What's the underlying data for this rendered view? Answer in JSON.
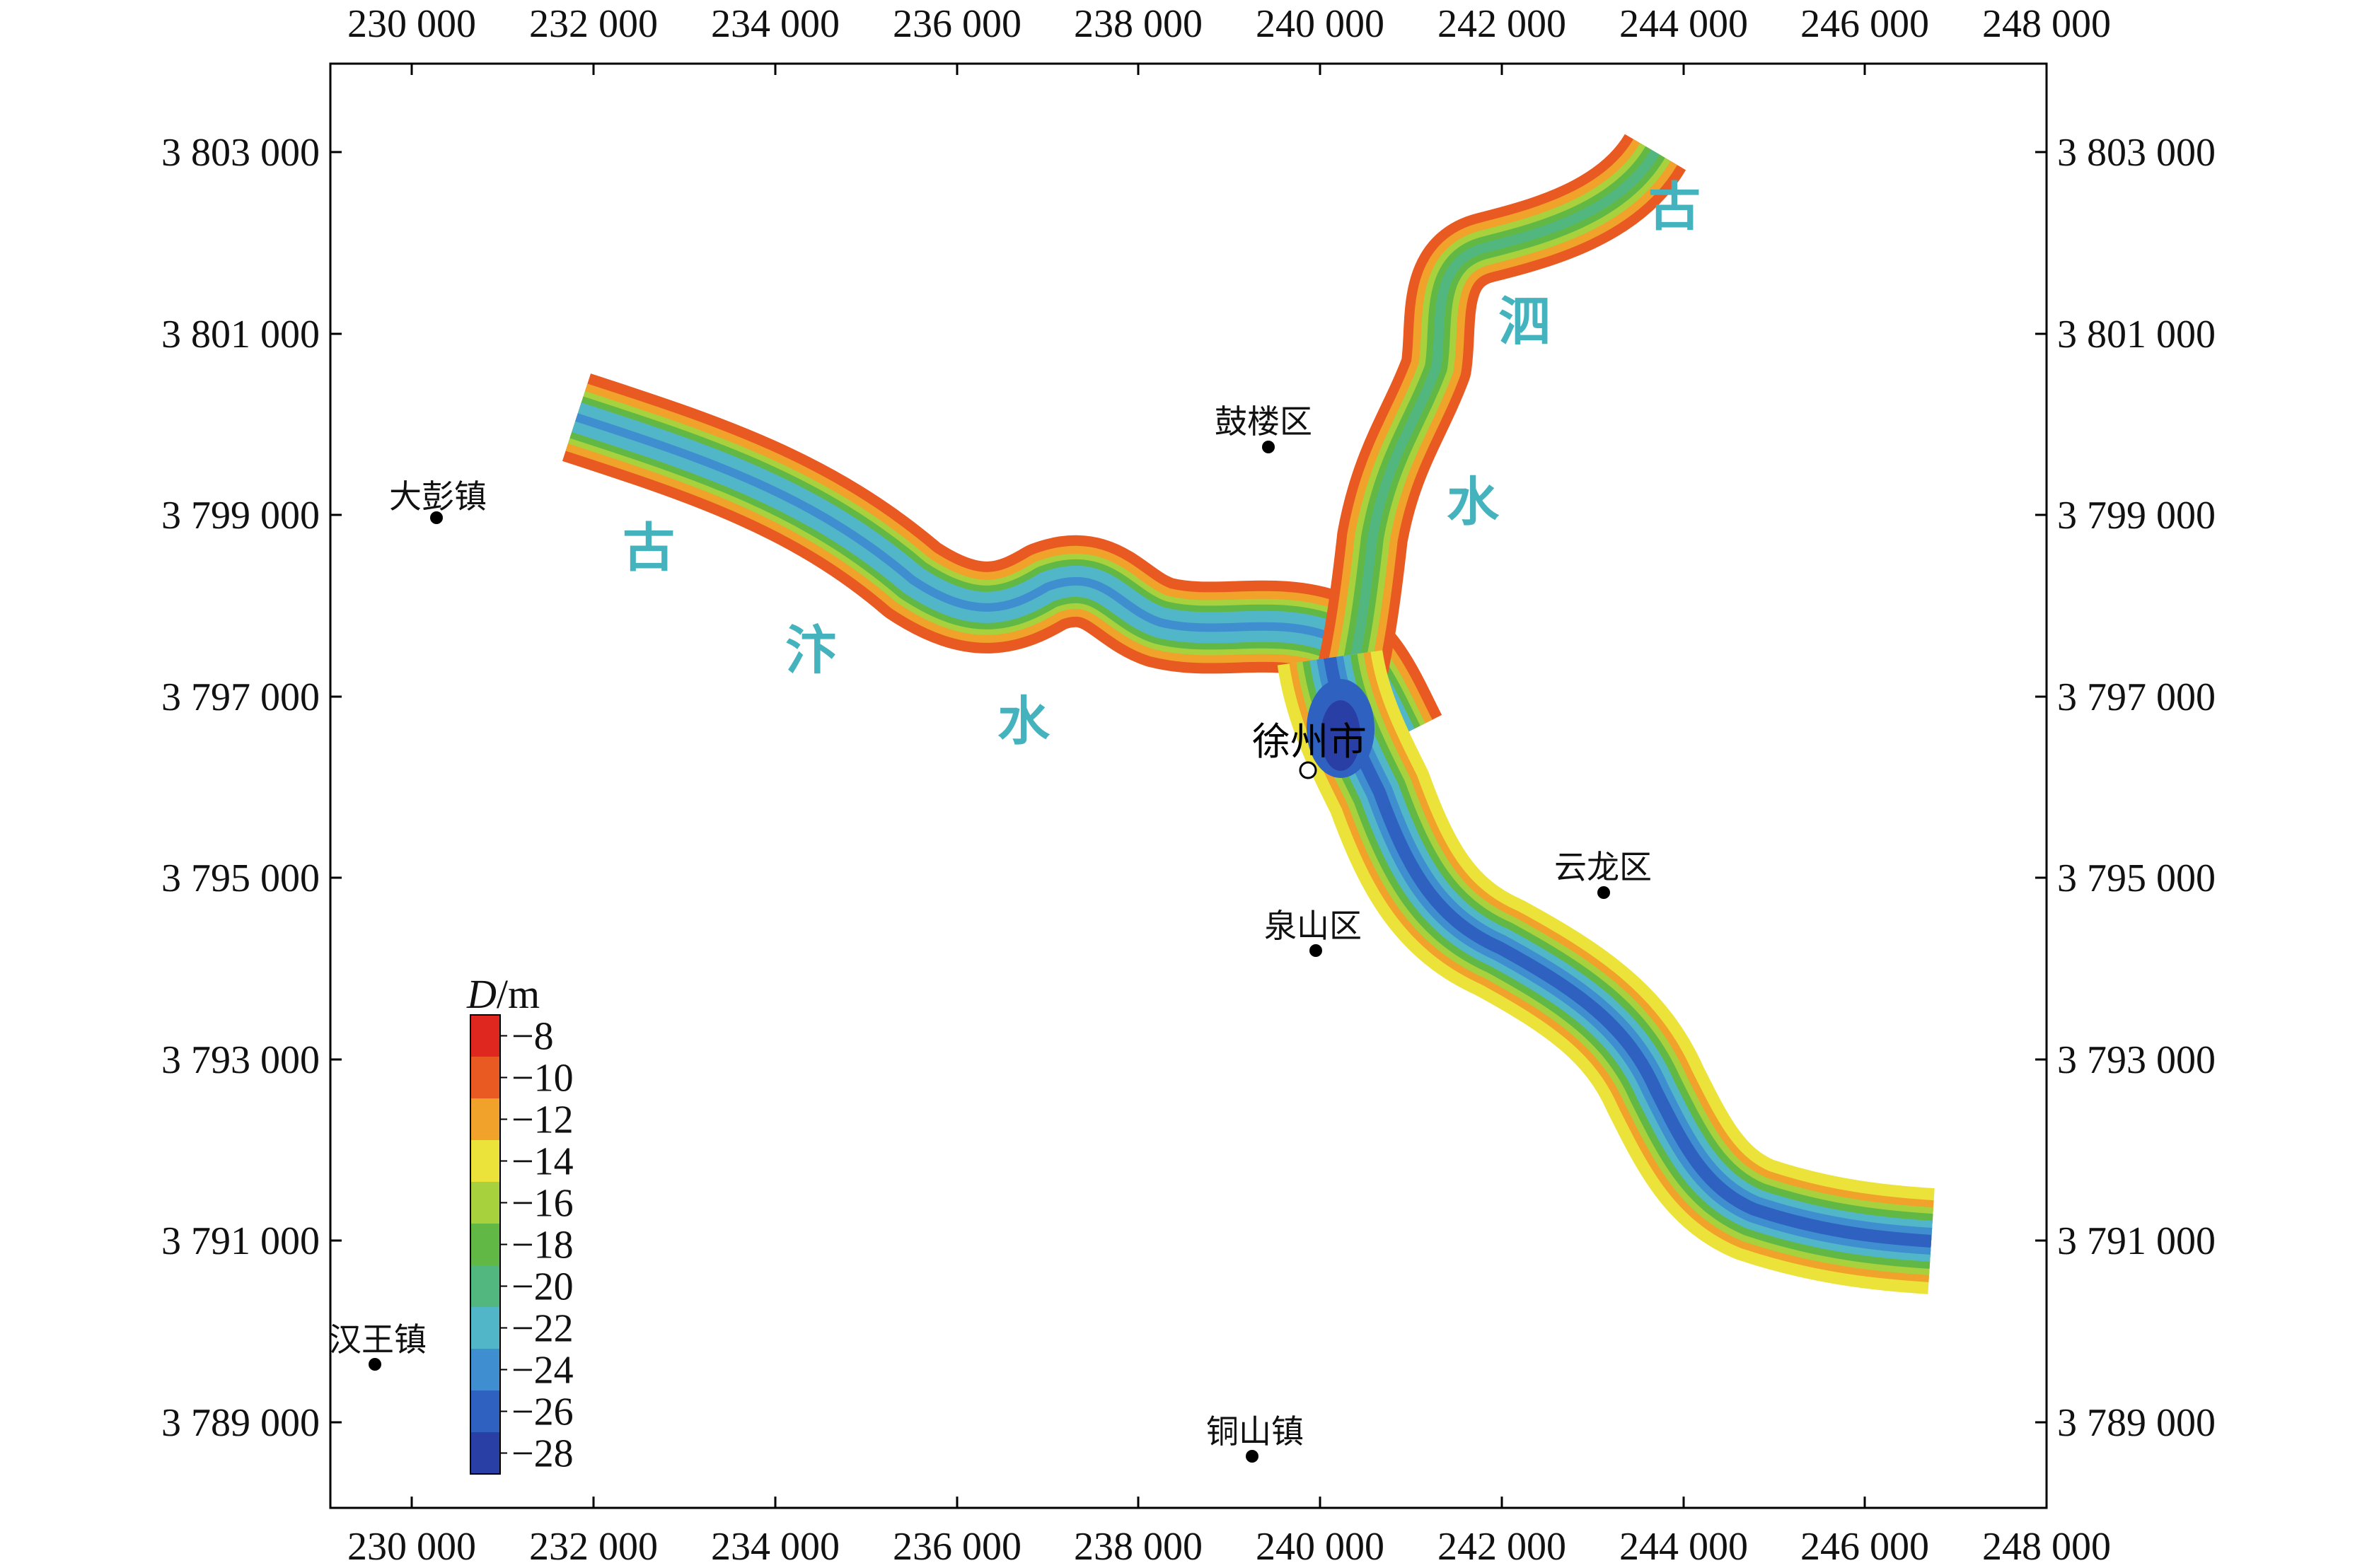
{
  "map": {
    "x_ticks": [
      "230 000",
      "232 000",
      "234 000",
      "236 000",
      "238 000",
      "240 000",
      "242 000",
      "244 000",
      "246 000",
      "248 000"
    ],
    "y_ticks": [
      "3 803 000",
      "3 801 000",
      "3 799 000",
      "3 797 000",
      "3 795 000",
      "3 793 000",
      "3 791 000",
      "3 789 000"
    ],
    "places": [
      {
        "name": "大彭镇"
      },
      {
        "name": "鼓楼区"
      },
      {
        "name": "云龙区"
      },
      {
        "name": "泉山区"
      },
      {
        "name": "汉王镇"
      },
      {
        "name": "铜山镇"
      }
    ],
    "city": {
      "name": "徐州市"
    },
    "river_labels": [
      "古",
      "汴",
      "水",
      "古",
      "泗",
      "水"
    ],
    "legend": {
      "title_italic": "D",
      "title_rest": "/m",
      "labels": [
        "−8",
        "−10",
        "−12",
        "−14",
        "−16",
        "−18",
        "−20",
        "−22",
        "−24",
        "−26",
        "−28"
      ],
      "colors": [
        "#e0271f",
        "#e85a22",
        "#f0a22a",
        "#ece33a",
        "#a7d23e",
        "#62b845",
        "#52b77e",
        "#52b6c9",
        "#3f8fd0",
        "#2f62c0",
        "#2a3fa6"
      ]
    }
  }
}
